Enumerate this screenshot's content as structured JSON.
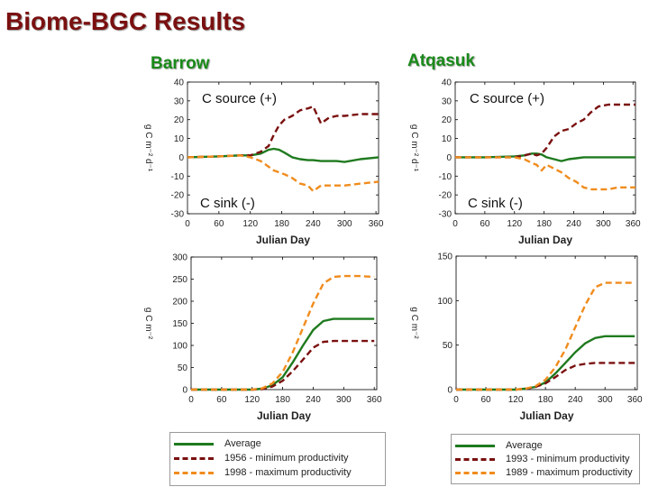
{
  "page": {
    "title": "Biome-BGC Results"
  },
  "sites": [
    {
      "name": "Barrow",
      "legend": [
        {
          "label": "Average",
          "color": "#1f7a1f",
          "dash": "solid"
        },
        {
          "label": "1956 - minimum productivity",
          "color": "#7a1010",
          "dash": "dashed"
        },
        {
          "label": "1998 - maximum productivity",
          "color": "#f08c1e",
          "dash": "dashed"
        }
      ]
    },
    {
      "name": "Atqasuk",
      "legend": [
        {
          "label": "Average",
          "color": "#1f7a1f",
          "dash": "solid"
        },
        {
          "label": "1993 - minimum productivity",
          "color": "#7a1010",
          "dash": "dashed"
        },
        {
          "label": "1989 - maximum productivity",
          "color": "#f08c1e",
          "dash": "dashed"
        }
      ]
    }
  ],
  "chart_data": [
    {
      "type": "line",
      "site": "Barrow",
      "xlabel": "Julian Day",
      "ylabel": "g C m⁻² d⁻¹",
      "annotations": [
        "C source (+)",
        "C sink (-)"
      ],
      "xlim": [
        0,
        365
      ],
      "ylim": [
        -30,
        40
      ],
      "xticks": [
        0,
        60,
        120,
        180,
        240,
        300,
        360
      ],
      "yticks": [
        -30,
        -20,
        -10,
        0,
        10,
        20,
        30,
        40
      ],
      "grid": false,
      "x": [
        0,
        60,
        100,
        120,
        140,
        155,
        165,
        175,
        185,
        200,
        215,
        230,
        240,
        255,
        270,
        285,
        300,
        330,
        365
      ],
      "series": [
        {
          "name": "Average",
          "values": [
            0,
            0.5,
            1,
            1,
            2,
            4,
            4.5,
            4,
            2.5,
            0,
            -1,
            -1.5,
            -1.5,
            -2,
            -2,
            -2,
            -2.5,
            -1,
            0
          ]
        },
        {
          "name": "1956 - minimum productivity",
          "values": [
            0,
            0.5,
            1,
            1,
            3,
            6,
            12,
            17,
            20,
            22,
            25,
            26,
            27,
            18,
            21,
            22,
            22,
            23,
            23
          ]
        },
        {
          "name": "1998 - maximum productivity",
          "values": [
            0,
            0.5,
            1,
            0,
            -2,
            -5,
            -7,
            -8,
            -9,
            -11,
            -14,
            -15,
            -18,
            -15,
            -15,
            -15,
            -15,
            -14,
            -13
          ]
        }
      ]
    },
    {
      "type": "line",
      "site": "Atqasuk",
      "xlabel": "Julian Day",
      "ylabel": "g C m⁻² d⁻¹",
      "annotations": [
        "C source (+)",
        "C sink (-)"
      ],
      "xlim": [
        0,
        365
      ],
      "ylim": [
        -30,
        40
      ],
      "xticks": [
        0,
        60,
        120,
        180,
        240,
        300,
        360
      ],
      "yticks": [
        -30,
        -20,
        -10,
        0,
        10,
        20,
        30,
        40
      ],
      "grid": false,
      "x": [
        0,
        60,
        120,
        140,
        155,
        165,
        175,
        185,
        200,
        215,
        230,
        245,
        260,
        275,
        290,
        310,
        330,
        365
      ],
      "series": [
        {
          "name": "Average",
          "values": [
            0,
            0,
            0.5,
            1,
            2,
            2,
            1.5,
            0,
            -1,
            -2,
            -1,
            -0.5,
            0,
            0,
            0,
            0,
            0,
            0
          ]
        },
        {
          "name": "1993 - minimum productivity",
          "values": [
            0,
            0,
            0,
            1,
            2,
            1,
            2,
            5,
            11,
            14,
            15,
            18,
            20,
            24,
            27,
            28,
            28,
            28
          ]
        },
        {
          "name": "1989 - maximum productivity",
          "values": [
            0,
            0,
            0,
            -1,
            -3,
            -4,
            -7,
            -4,
            -6,
            -8,
            -11,
            -13,
            -16,
            -17,
            -17,
            -17,
            -16,
            -16
          ]
        }
      ]
    },
    {
      "type": "line",
      "site": "Barrow",
      "xlabel": "Julian Day",
      "ylabel": "g C m⁻²",
      "xlim": [
        0,
        365
      ],
      "ylim": [
        0,
        300
      ],
      "xticks": [
        0,
        60,
        120,
        180,
        240,
        300,
        360
      ],
      "yticks": [
        0,
        50,
        100,
        150,
        200,
        250,
        300
      ],
      "grid": false,
      "x": [
        0,
        60,
        120,
        140,
        160,
        180,
        200,
        220,
        240,
        260,
        280,
        300,
        330,
        360
      ],
      "series": [
        {
          "name": "Average",
          "values": [
            0,
            0,
            0,
            2,
            10,
            28,
            62,
            100,
            135,
            155,
            160,
            160,
            160,
            160
          ]
        },
        {
          "name": "1956 - minimum productivity",
          "values": [
            0,
            0,
            0,
            1,
            7,
            20,
            42,
            68,
            95,
            108,
            110,
            110,
            110,
            110
          ]
        },
        {
          "name": "1998 - maximum productivity",
          "values": [
            0,
            0,
            0,
            3,
            14,
            40,
            85,
            140,
            195,
            240,
            255,
            257,
            257,
            255
          ]
        }
      ]
    },
    {
      "type": "line",
      "site": "Atqasuk",
      "xlabel": "Julian Day",
      "ylabel": "g C m⁻²",
      "xlim": [
        0,
        365
      ],
      "ylim": [
        0,
        150
      ],
      "xticks": [
        0,
        60,
        120,
        180,
        240,
        300,
        360
      ],
      "yticks": [
        0,
        50,
        100,
        150
      ],
      "grid": false,
      "x": [
        0,
        60,
        120,
        140,
        160,
        180,
        200,
        220,
        240,
        260,
        280,
        300,
        330,
        360
      ],
      "series": [
        {
          "name": "Average",
          "values": [
            0,
            0,
            0,
            1,
            3,
            8,
            18,
            30,
            42,
            52,
            58,
            60,
            60,
            60
          ]
        },
        {
          "name": "1993 - minimum productivity",
          "values": [
            0,
            0,
            0,
            1,
            3,
            7,
            14,
            22,
            27,
            29,
            30,
            30,
            30,
            30
          ]
        },
        {
          "name": "1989 - maximum productivity",
          "values": [
            0,
            0,
            0,
            1,
            4,
            11,
            25,
            45,
            70,
            95,
            115,
            120,
            120,
            120
          ]
        }
      ]
    }
  ]
}
